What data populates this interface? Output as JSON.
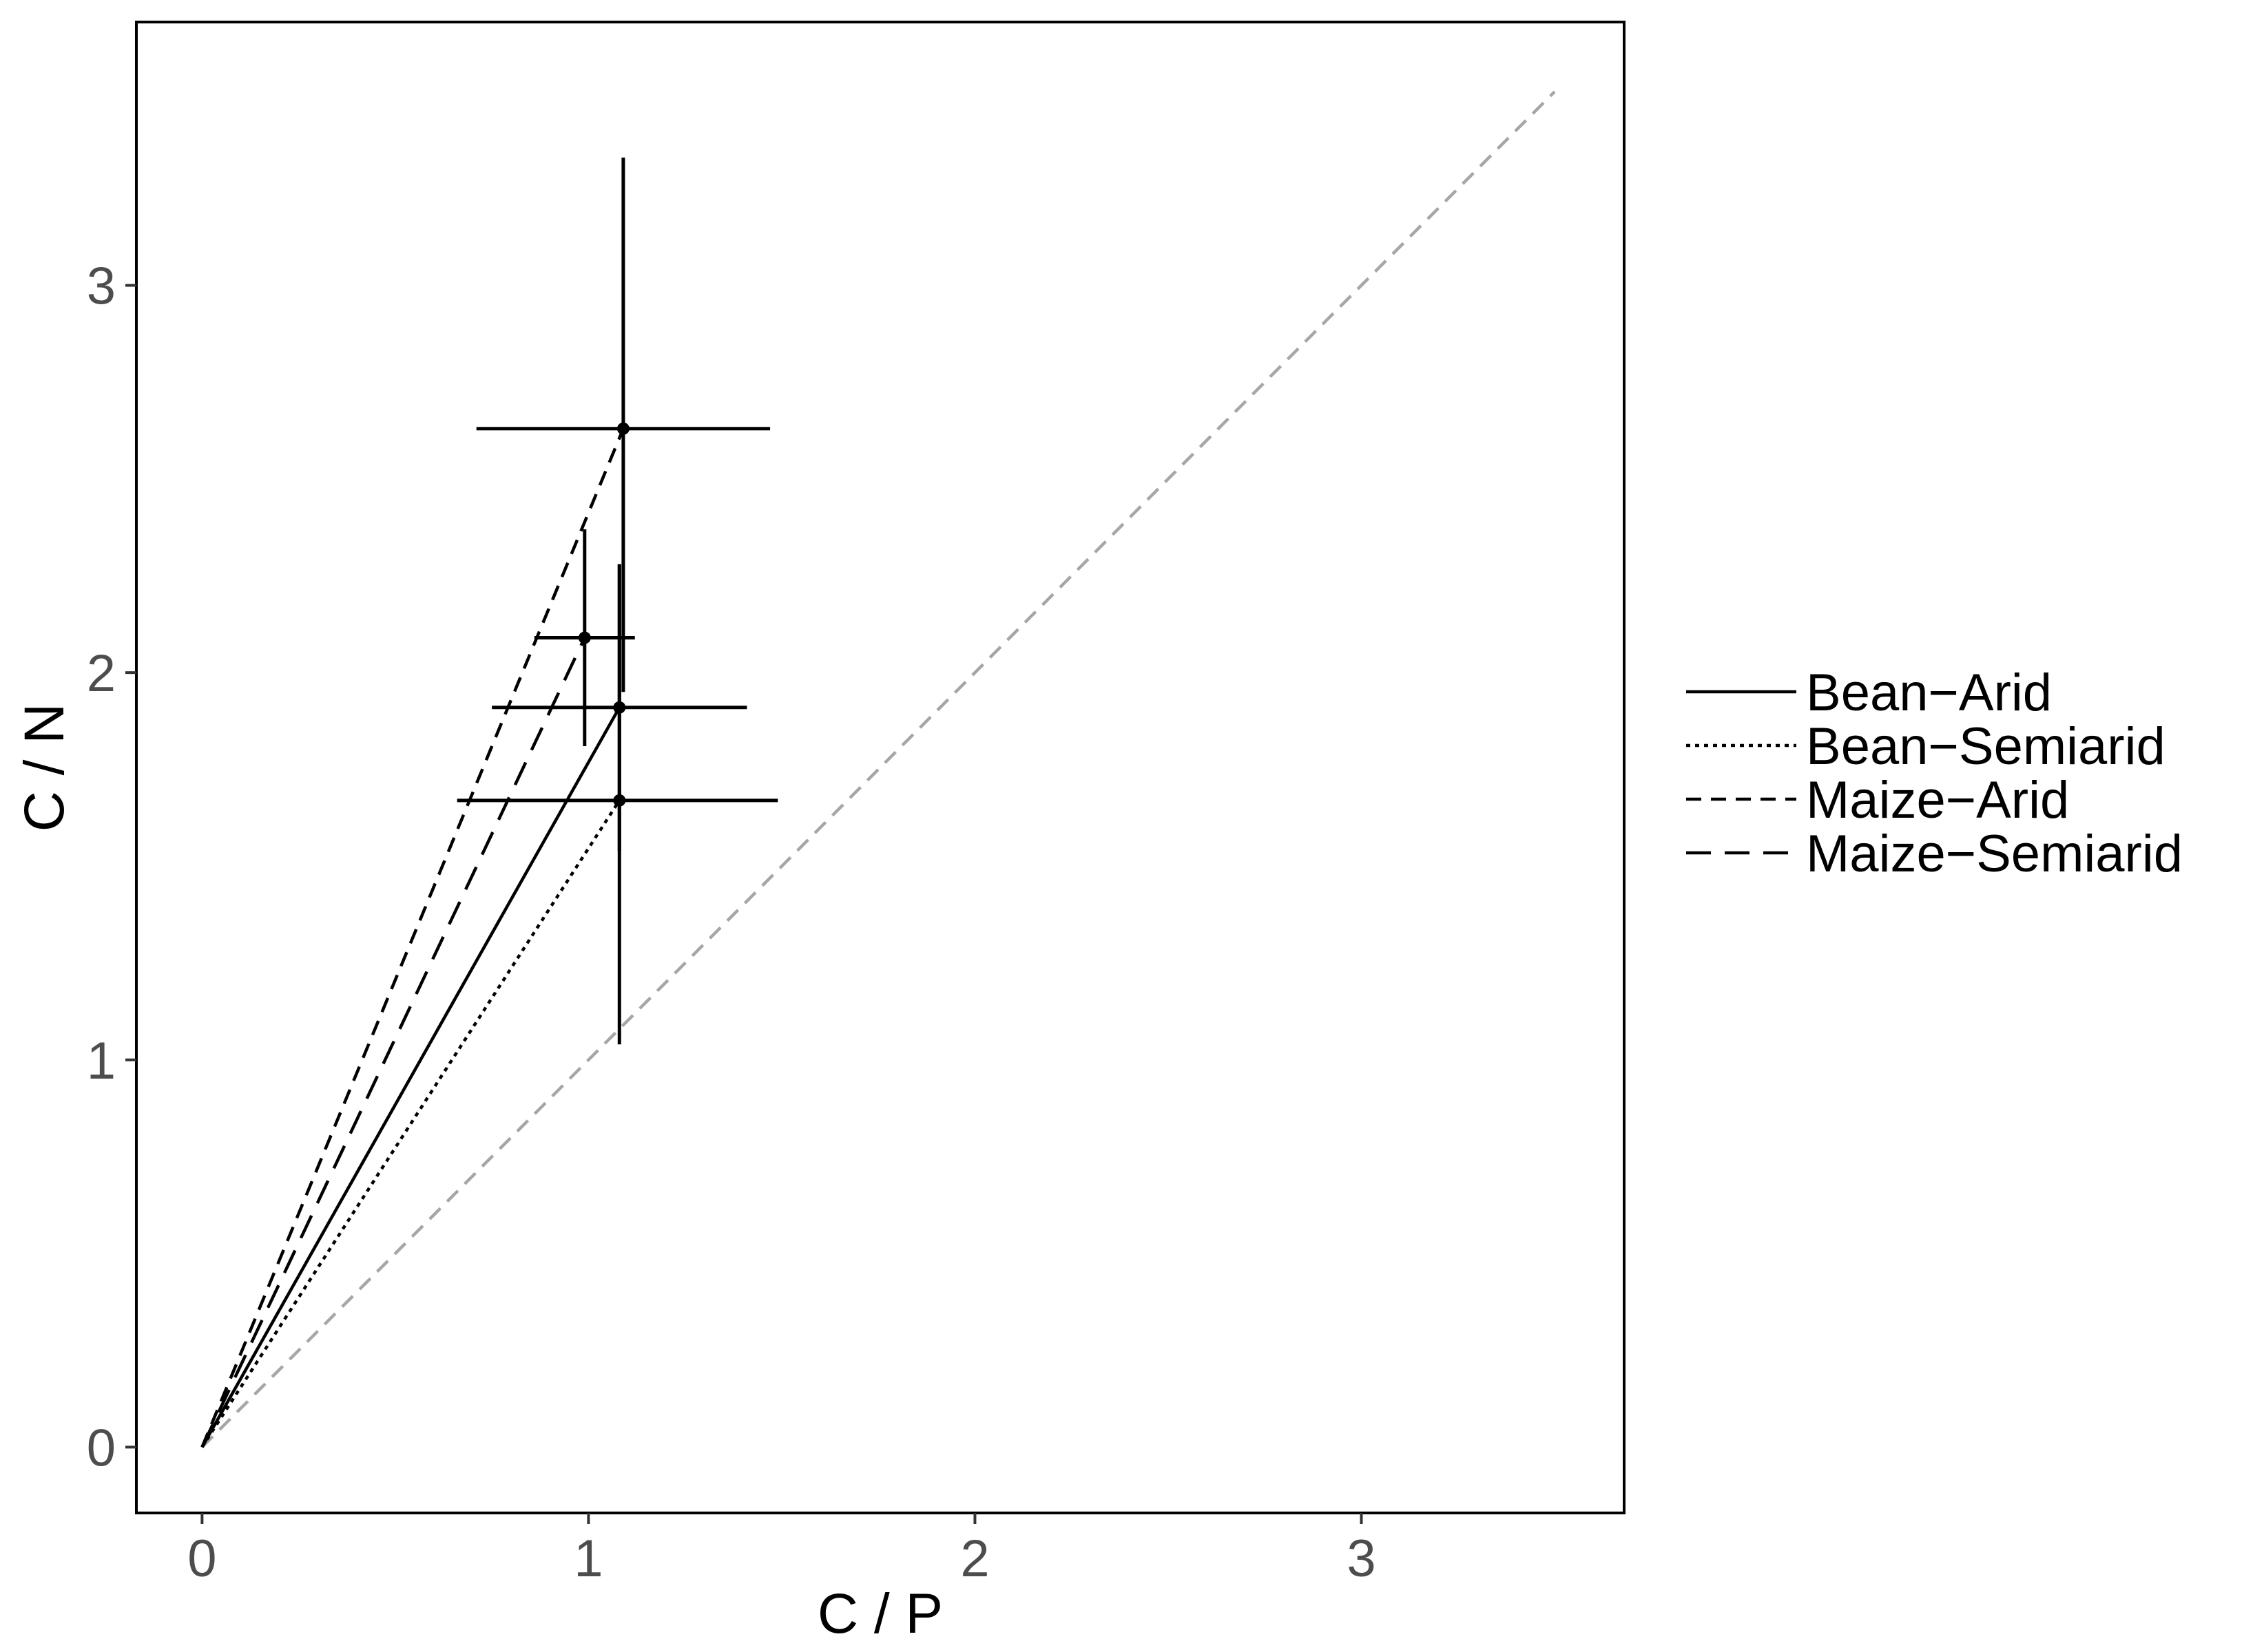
{
  "chart_data": {
    "type": "line",
    "title": "",
    "xlabel": "C / P",
    "ylabel": "C / N",
    "xlim": [
      -0.17,
      3.68
    ],
    "ylim": [
      -0.17,
      3.68
    ],
    "x_ticks": [
      0,
      1,
      2,
      3
    ],
    "y_ticks": [
      0,
      1,
      2,
      3
    ],
    "x_tick_labels": [
      "0",
      "1",
      "2",
      "3"
    ],
    "y_tick_labels": [
      "0",
      "1",
      "2",
      "3"
    ],
    "grid": false,
    "legend_position": "right",
    "reference_line": {
      "style": "dashed",
      "color": "#a6a6a6",
      "x": [
        0,
        3.5
      ],
      "y": [
        0,
        3.5
      ]
    },
    "series": [
      {
        "name": "Bean−Arid",
        "linetype": "solid",
        "x": [
          0,
          1.08
        ],
        "y": [
          0,
          1.91
        ],
        "error": {
          "x_low": 0.75,
          "x_high": 1.41,
          "y_low": 1.54,
          "y_high": 2.28
        }
      },
      {
        "name": "Bean−Semiarid",
        "linetype": "dotted",
        "x": [
          0,
          1.08
        ],
        "y": [
          0,
          1.67
        ],
        "error": {
          "x_low": 0.66,
          "x_high": 1.49,
          "y_low": 1.04,
          "y_high": 2.28
        }
      },
      {
        "name": "Maize−Arid",
        "linetype": "dashed",
        "x": [
          0,
          1.09
        ],
        "y": [
          0,
          2.63
        ],
        "error": {
          "x_low": 0.71,
          "x_high": 1.47,
          "y_low": 1.95,
          "y_high": 3.33
        }
      },
      {
        "name": "Maize−Semiarid",
        "linetype": "longdash",
        "x": [
          0,
          0.99
        ],
        "y": [
          0,
          2.09
        ],
        "error": {
          "x_low": 0.86,
          "x_high": 1.12,
          "y_low": 1.81,
          "y_high": 2.37
        }
      }
    ]
  },
  "colors": {
    "series_line": "#000000",
    "reference_line": "#a6a6a6",
    "panel_border": "#000000",
    "tick_label": "#4d4d4d"
  }
}
